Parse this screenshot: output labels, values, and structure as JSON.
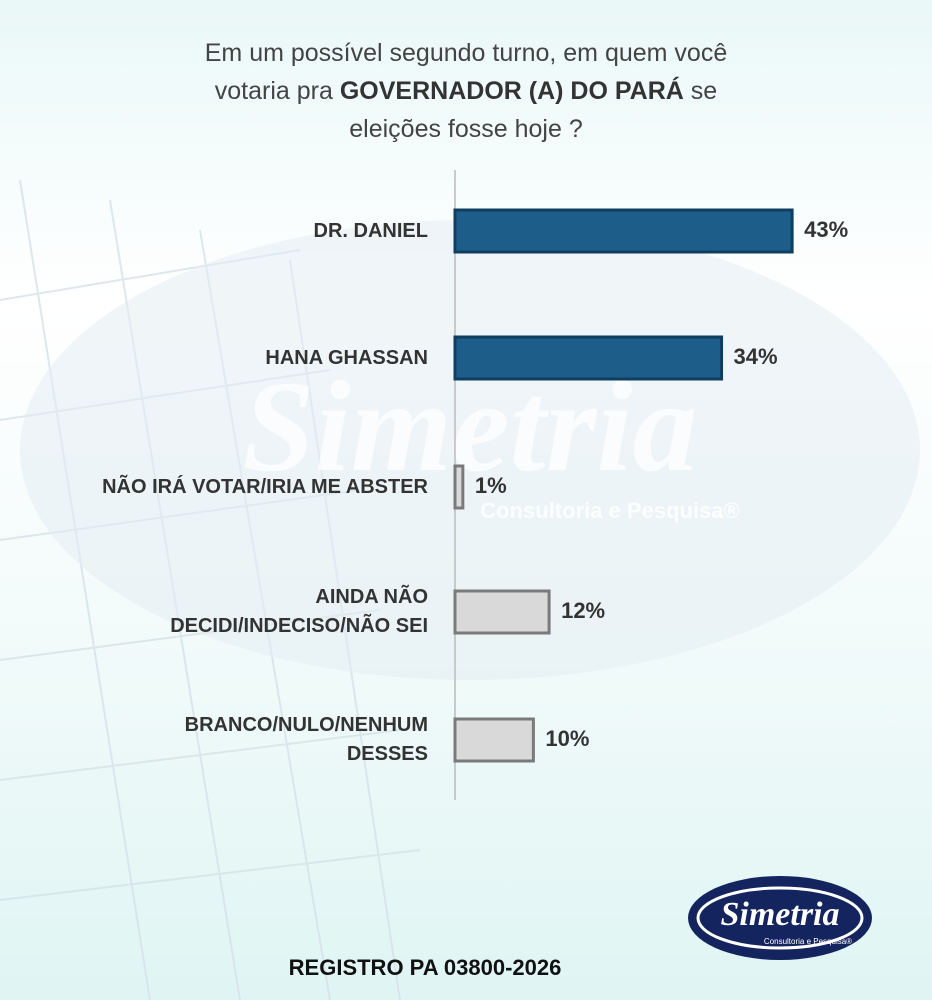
{
  "chart_data": {
    "type": "hbar",
    "title_parts": [
      "Em um possível segundo turno, em quem você",
      "votaria pra",
      "GOVERNADOR (A) DO PARÁ",
      "se",
      "eleições fosse hoje ?"
    ],
    "categories": [
      "DR. DANIEL",
      "HANA GHASSAN",
      "NÃO IRÁ VOTAR/IRIA ME ABSTER",
      "AINDA NÃO\nDECIDI/INDECISO/NÃO SEI",
      "BRANCO/NULO/NENHUM\nDESSES"
    ],
    "values": [
      43,
      34,
      1,
      12,
      10
    ],
    "value_labels": [
      "43%",
      "34%",
      "1%",
      "12%",
      "10%"
    ],
    "colors": [
      "#1c5d8a",
      "#1c5d8a",
      "#d9d9d9",
      "#d9d9d9",
      "#d9d9d9"
    ]
  },
  "footer": "REGISTRO PA 03800-2026",
  "logo": {
    "name": "Simetria",
    "tagline": "Consultoria e Pesquisa®"
  }
}
